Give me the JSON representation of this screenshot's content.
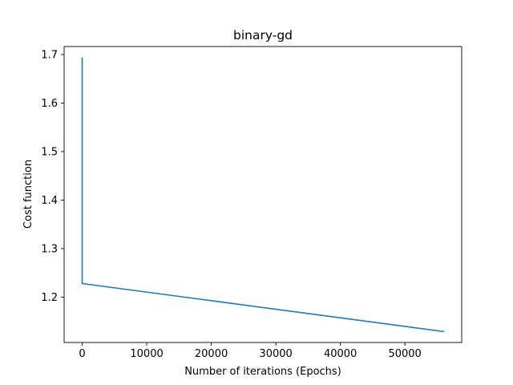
{
  "chart_data": {
    "type": "line",
    "title": "binary-gd",
    "xlabel": "Number of iterations (Epochs)",
    "ylabel": "Cost function",
    "xlim": [
      -2800,
      58800
    ],
    "ylim": [
      1.1065,
      1.7165
    ],
    "x_ticks": [
      0,
      10000,
      20000,
      30000,
      40000,
      50000
    ],
    "x_tick_labels": [
      "0",
      "10000",
      "20000",
      "30000",
      "40000",
      "50000"
    ],
    "y_ticks": [
      1.2,
      1.3,
      1.4,
      1.5,
      1.6,
      1.7
    ],
    "y_tick_labels": [
      "1.2",
      "1.3",
      "1.4",
      "1.5",
      "1.6",
      "1.7"
    ],
    "grid": false,
    "series": [
      {
        "color": "#1f77b4",
        "x": [
          0,
          1,
          56000
        ],
        "y": [
          1.693,
          1.228,
          1.129
        ]
      }
    ]
  }
}
